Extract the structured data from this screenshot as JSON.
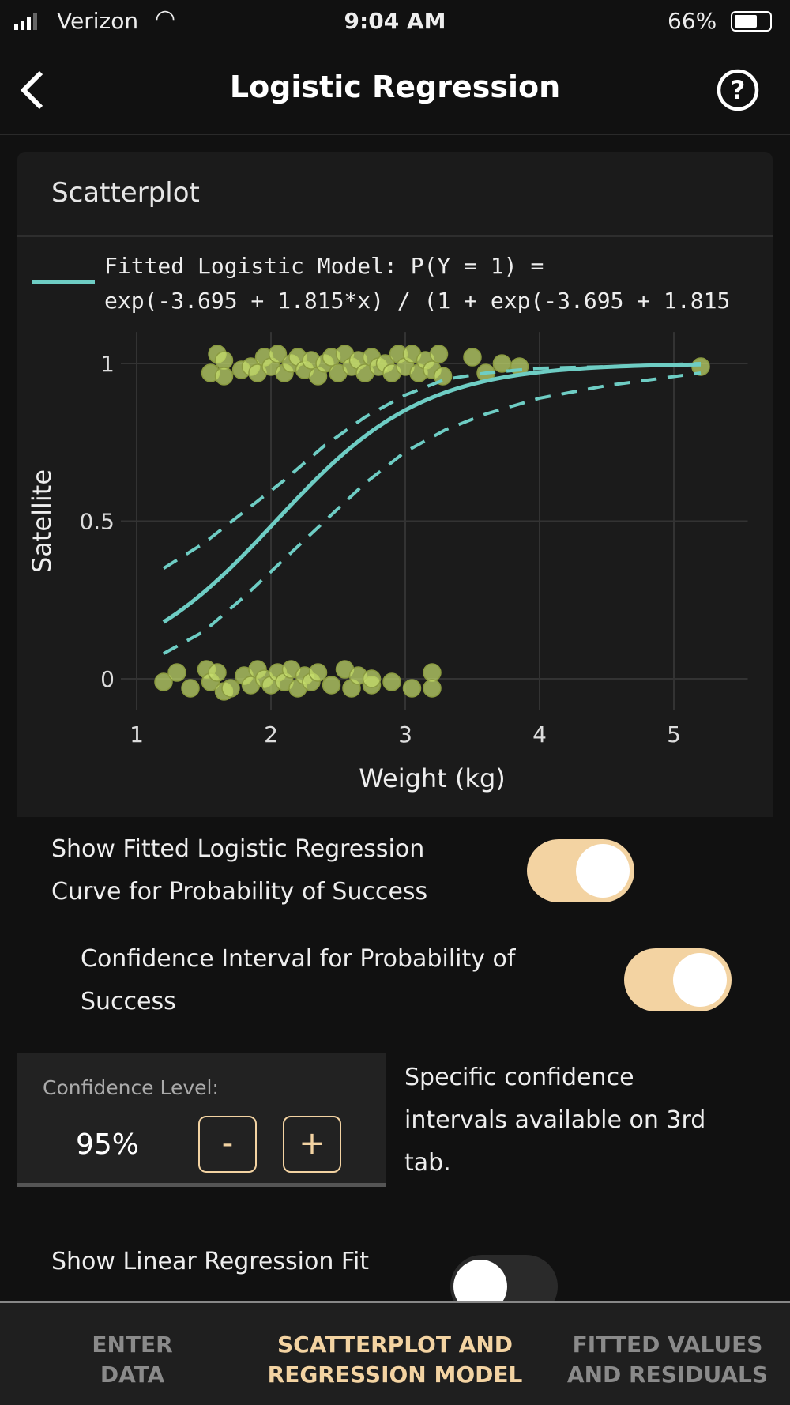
{
  "status": {
    "carrier": "Verizon",
    "time": "9:04 AM",
    "battery": "66%",
    "battery_level": 0.66
  },
  "header": {
    "title": "Logistic Regression",
    "back_icon": "chevron-left-icon",
    "help_icon": "question-circle-icon"
  },
  "card": {
    "title": "Scatterplot"
  },
  "chart_data": {
    "type": "scatter",
    "legend": {
      "line1": "Fitted Logistic Model: P(Y = 1) =",
      "line2": "exp(-3.695 + 1.815*x) / (1 + exp(-3.695 + 1.815",
      "placement": "top-left"
    },
    "xlabel": "Weight (kg)",
    "ylabel": "Satellite",
    "xlim": [
      1,
      5.55
    ],
    "ylim": [
      -0.1,
      1.1
    ],
    "xticks": [
      "1",
      "2",
      "3",
      "4",
      "5"
    ],
    "xtick_values": [
      1,
      2,
      3,
      4,
      5
    ],
    "yticks": [
      "0",
      "0.5",
      "1"
    ],
    "ytick_values": [
      0,
      0.5,
      1
    ],
    "model": {
      "intercept": -3.695,
      "slope": 1.815,
      "x_range": [
        1.2,
        5.2
      ]
    },
    "ci_x": [
      1.2,
      1.5,
      1.8,
      2.1,
      2.4,
      2.7,
      3.0,
      3.3,
      3.6,
      4.0,
      4.5,
      5.2
    ],
    "ci_upper": [
      0.35,
      0.43,
      0.53,
      0.63,
      0.74,
      0.83,
      0.9,
      0.95,
      0.97,
      0.985,
      0.99,
      1.0
    ],
    "ci_lower": [
      0.08,
      0.15,
      0.26,
      0.38,
      0.5,
      0.62,
      0.72,
      0.79,
      0.84,
      0.89,
      0.93,
      0.97
    ],
    "points_y1": [
      [
        1.55,
        0.97
      ],
      [
        1.6,
        1.03
      ],
      [
        1.65,
        1.01
      ],
      [
        1.65,
        0.96
      ],
      [
        1.78,
        0.98
      ],
      [
        1.85,
        0.99
      ],
      [
        1.9,
        0.97
      ],
      [
        1.95,
        1.02
      ],
      [
        2.0,
        0.99
      ],
      [
        2.05,
        1.03
      ],
      [
        2.1,
        0.97
      ],
      [
        2.15,
        1.0
      ],
      [
        2.2,
        1.02
      ],
      [
        2.25,
        0.98
      ],
      [
        2.3,
        1.01
      ],
      [
        2.35,
        0.96
      ],
      [
        2.4,
        1.0
      ],
      [
        2.45,
        1.02
      ],
      [
        2.5,
        0.97
      ],
      [
        2.55,
        1.03
      ],
      [
        2.6,
        0.99
      ],
      [
        2.65,
        1.01
      ],
      [
        2.7,
        0.97
      ],
      [
        2.75,
        1.02
      ],
      [
        2.8,
        0.99
      ],
      [
        2.85,
        1.0
      ],
      [
        2.9,
        0.97
      ],
      [
        2.95,
        1.03
      ],
      [
        3.0,
        0.99
      ],
      [
        3.05,
        1.03
      ],
      [
        3.1,
        0.97
      ],
      [
        3.15,
        1.01
      ],
      [
        3.2,
        0.98
      ],
      [
        3.25,
        1.03
      ],
      [
        3.28,
        0.96
      ],
      [
        3.5,
        1.02
      ],
      [
        3.6,
        0.97
      ],
      [
        3.72,
        1.0
      ],
      [
        3.85,
        0.99
      ],
      [
        5.2,
        0.99
      ]
    ],
    "points_y0": [
      [
        1.2,
        -0.01
      ],
      [
        1.3,
        0.02
      ],
      [
        1.4,
        -0.03
      ],
      [
        1.52,
        0.03
      ],
      [
        1.55,
        -0.01
      ],
      [
        1.6,
        0.02
      ],
      [
        1.65,
        -0.04
      ],
      [
        1.7,
        -0.03
      ],
      [
        1.8,
        0.01
      ],
      [
        1.85,
        -0.02
      ],
      [
        1.9,
        0.03
      ],
      [
        1.95,
        0.0
      ],
      [
        2.0,
        -0.02
      ],
      [
        2.05,
        0.02
      ],
      [
        2.1,
        -0.01
      ],
      [
        2.15,
        0.03
      ],
      [
        2.2,
        -0.03
      ],
      [
        2.25,
        0.01
      ],
      [
        2.3,
        -0.01
      ],
      [
        2.35,
        0.02
      ],
      [
        2.45,
        -0.02
      ],
      [
        2.55,
        0.03
      ],
      [
        2.6,
        -0.03
      ],
      [
        2.65,
        0.01
      ],
      [
        2.75,
        -0.02
      ],
      [
        2.75,
        0.0
      ],
      [
        2.9,
        -0.01
      ],
      [
        3.05,
        -0.03
      ],
      [
        3.2,
        0.02
      ],
      [
        3.2,
        -0.03
      ]
    ],
    "colors": {
      "points": "#c8e06e",
      "curve": "#6ecdc4",
      "grid": "#333333"
    }
  },
  "toggles": {
    "fitted_curve": {
      "line1": "Show Fitted Logistic Regression",
      "line2": "Curve for Probability of Success",
      "on": true
    },
    "conf_interval": {
      "line1": "Confidence Interval for Probability of",
      "line2": "Success",
      "on": true
    },
    "linear_fit": {
      "label": "Show Linear Regression Fit",
      "on": false
    }
  },
  "confidence": {
    "label": "Confidence Level:",
    "value": "95%",
    "minus": "-",
    "plus": "+"
  },
  "note": {
    "line1": "Specific confidence",
    "line2": "intervals available on 3rd",
    "line3": "tab."
  },
  "tabs": [
    {
      "line1": "ENTER",
      "line2": "DATA"
    },
    {
      "line1": "SCATTERPLOT AND",
      "line2": "REGRESSION MODEL",
      "active": true
    },
    {
      "line1": "FITTED VALUES",
      "line2": "AND RESIDUALS"
    }
  ],
  "accent": "#f3d3a2"
}
